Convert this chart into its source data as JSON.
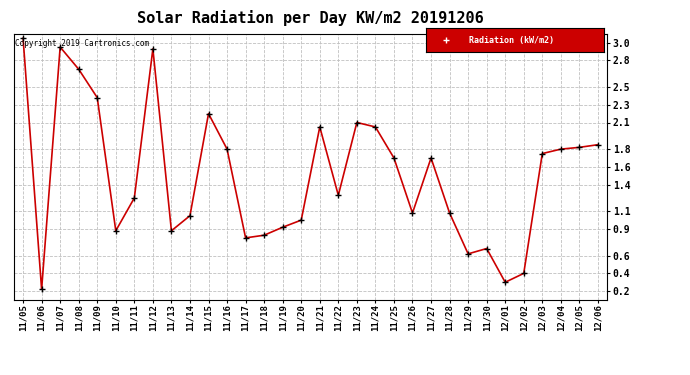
{
  "title": "Solar Radiation per Day KW/m2 20191206",
  "copyright": "Copyright 2019 Cartronics.com",
  "legend_label": "Radiation (kW/m2)",
  "dates": [
    "11/05",
    "11/06",
    "11/07",
    "11/08",
    "11/09",
    "11/10",
    "11/11",
    "11/12",
    "11/13",
    "11/14",
    "11/15",
    "11/16",
    "11/17",
    "11/18",
    "11/19",
    "11/20",
    "11/21",
    "11/22",
    "11/23",
    "11/24",
    "11/25",
    "11/26",
    "11/27",
    "11/28",
    "11/29",
    "11/30",
    "12/01",
    "12/02",
    "12/03",
    "12/04",
    "12/05",
    "12/06"
  ],
  "values": [
    3.05,
    0.22,
    2.95,
    2.7,
    2.38,
    0.88,
    1.25,
    2.93,
    0.88,
    1.05,
    2.2,
    1.8,
    0.8,
    0.83,
    0.92,
    1.0,
    2.05,
    1.28,
    2.1,
    2.05,
    1.7,
    1.08,
    1.7,
    1.08,
    0.62,
    0.68,
    0.3,
    0.4,
    1.75,
    1.8,
    1.82,
    1.85
  ],
  "line_color": "#cc0000",
  "marker_color": "#000000",
  "background_color": "#ffffff",
  "grid_color": "#c0c0c0",
  "ylim": [
    0.1,
    3.1
  ],
  "yticks": [
    0.2,
    0.4,
    0.6,
    0.9,
    1.1,
    1.4,
    1.6,
    1.8,
    2.1,
    2.3,
    2.5,
    2.8,
    3.0
  ],
  "legend_bg": "#cc0000",
  "legend_text_color": "#ffffff",
  "title_fontsize": 11,
  "tick_fontsize": 6.5,
  "ytick_fontsize": 7
}
